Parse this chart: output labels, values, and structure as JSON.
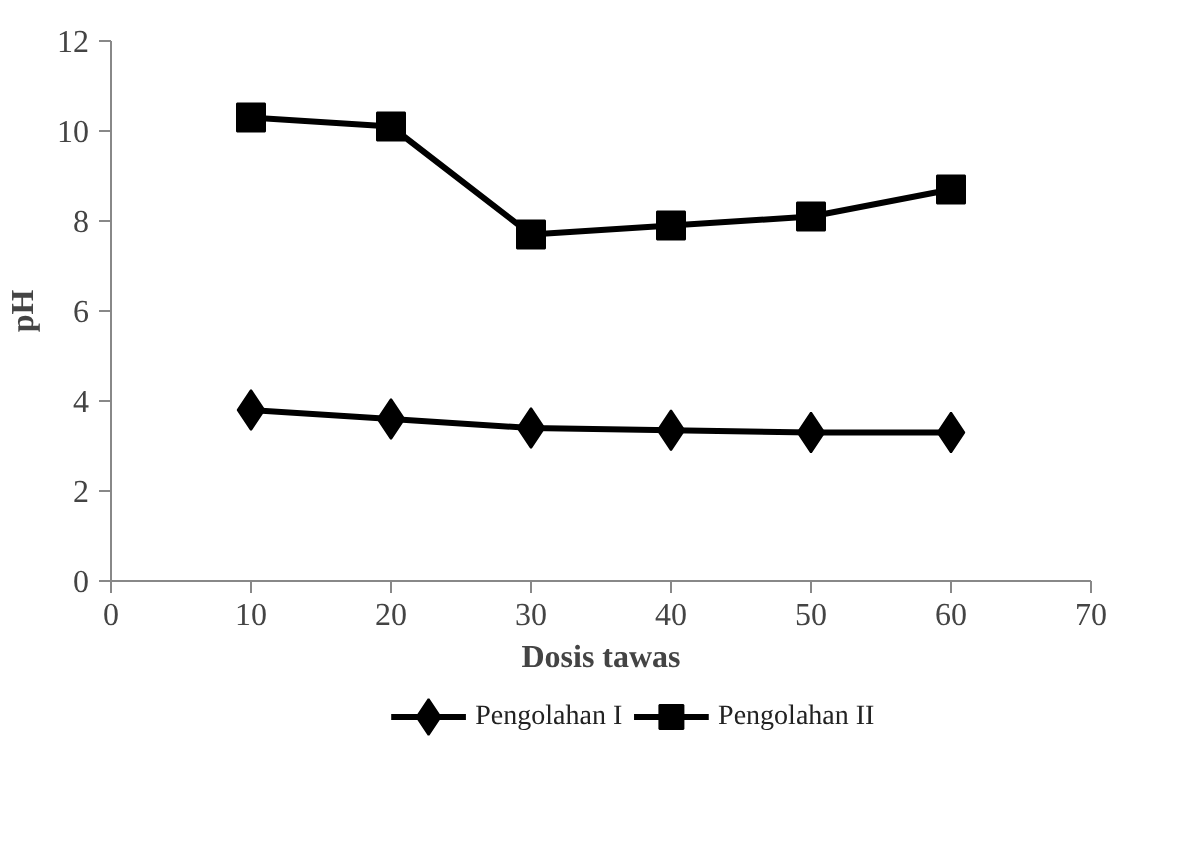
{
  "chart_data": {
    "type": "line",
    "xlabel": "Dosis tawas",
    "ylabel": "pH",
    "x": [
      10,
      20,
      30,
      40,
      50,
      60
    ],
    "series": [
      {
        "name": "Pengolahan I",
        "color": "#000000",
        "marker": "diamond",
        "values": [
          3.8,
          3.6,
          3.4,
          3.35,
          3.3,
          3.3
        ]
      },
      {
        "name": "Pengolahan II",
        "color": "#000000",
        "marker": "square",
        "values": [
          10.3,
          10.1,
          7.7,
          7.9,
          8.1,
          8.7
        ]
      }
    ],
    "xlim": [
      0,
      70
    ],
    "xticks": [
      0,
      10,
      20,
      30,
      40,
      50,
      60,
      70
    ],
    "ylim": [
      0,
      12
    ],
    "yticks": [
      0,
      2,
      4,
      6,
      8,
      10,
      12
    ],
    "grid": false,
    "legend": "bottom",
    "line_style": "solid"
  }
}
